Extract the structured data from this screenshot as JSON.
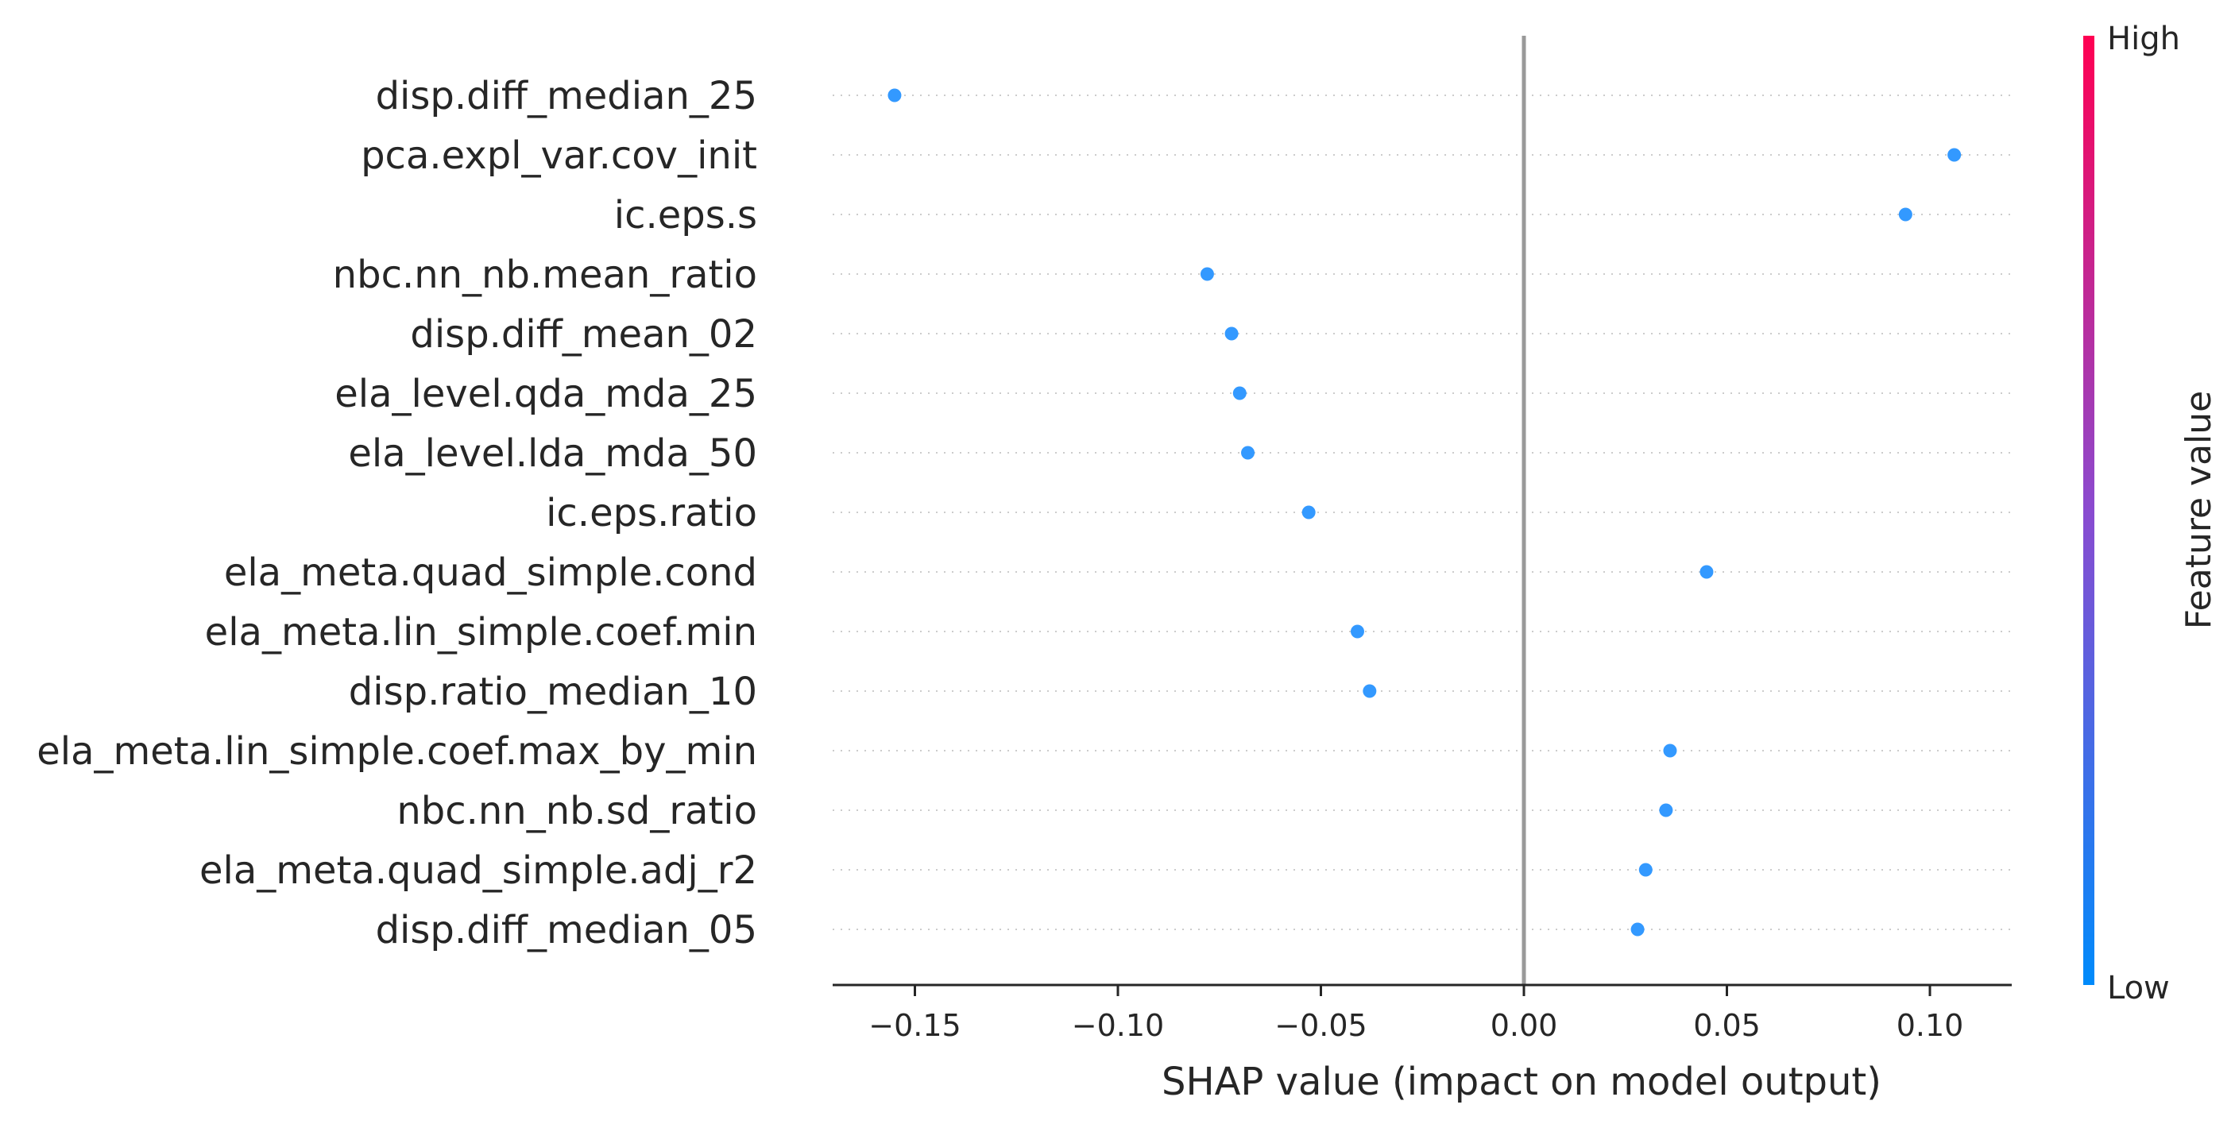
{
  "chart_data": {
    "type": "scatter",
    "xlabel": "SHAP value (impact on model output)",
    "xlim": [
      -0.17,
      0.12
    ],
    "xticks": [
      -0.15,
      -0.1,
      -0.05,
      0.0,
      0.05,
      0.1
    ],
    "xtick_labels": [
      "−0.15",
      "−0.10",
      "−0.05",
      "0.00",
      "0.05",
      "0.10"
    ],
    "zero_line": 0.0,
    "features": [
      {
        "name": "disp.diff_median_25",
        "shap": -0.155
      },
      {
        "name": "pca.expl_var.cov_init",
        "shap": 0.106
      },
      {
        "name": "ic.eps.s",
        "shap": 0.094
      },
      {
        "name": "nbc.nn_nb.mean_ratio",
        "shap": -0.078
      },
      {
        "name": "disp.diff_mean_02",
        "shap": -0.072
      },
      {
        "name": "ela_level.qda_mda_25",
        "shap": -0.07
      },
      {
        "name": "ela_level.lda_mda_50",
        "shap": -0.068
      },
      {
        "name": "ic.eps.ratio",
        "shap": -0.053
      },
      {
        "name": "ela_meta.quad_simple.cond",
        "shap": 0.045
      },
      {
        "name": "ela_meta.lin_simple.coef.min",
        "shap": -0.041
      },
      {
        "name": "disp.ratio_median_10",
        "shap": -0.038
      },
      {
        "name": "ela_meta.lin_simple.coef.max_by_min",
        "shap": 0.036
      },
      {
        "name": "nbc.nn_nb.sd_ratio",
        "shap": 0.035
      },
      {
        "name": "ela_meta.quad_simple.adj_r2",
        "shap": 0.03
      },
      {
        "name": "disp.diff_median_05",
        "shap": 0.028
      }
    ],
    "colorbar": {
      "title": "Feature value",
      "high_label": "High",
      "low_label": "Low",
      "high_color": "#ff0052",
      "low_color": "#008bfb"
    },
    "point_color": "#3399ff",
    "grid": false
  }
}
